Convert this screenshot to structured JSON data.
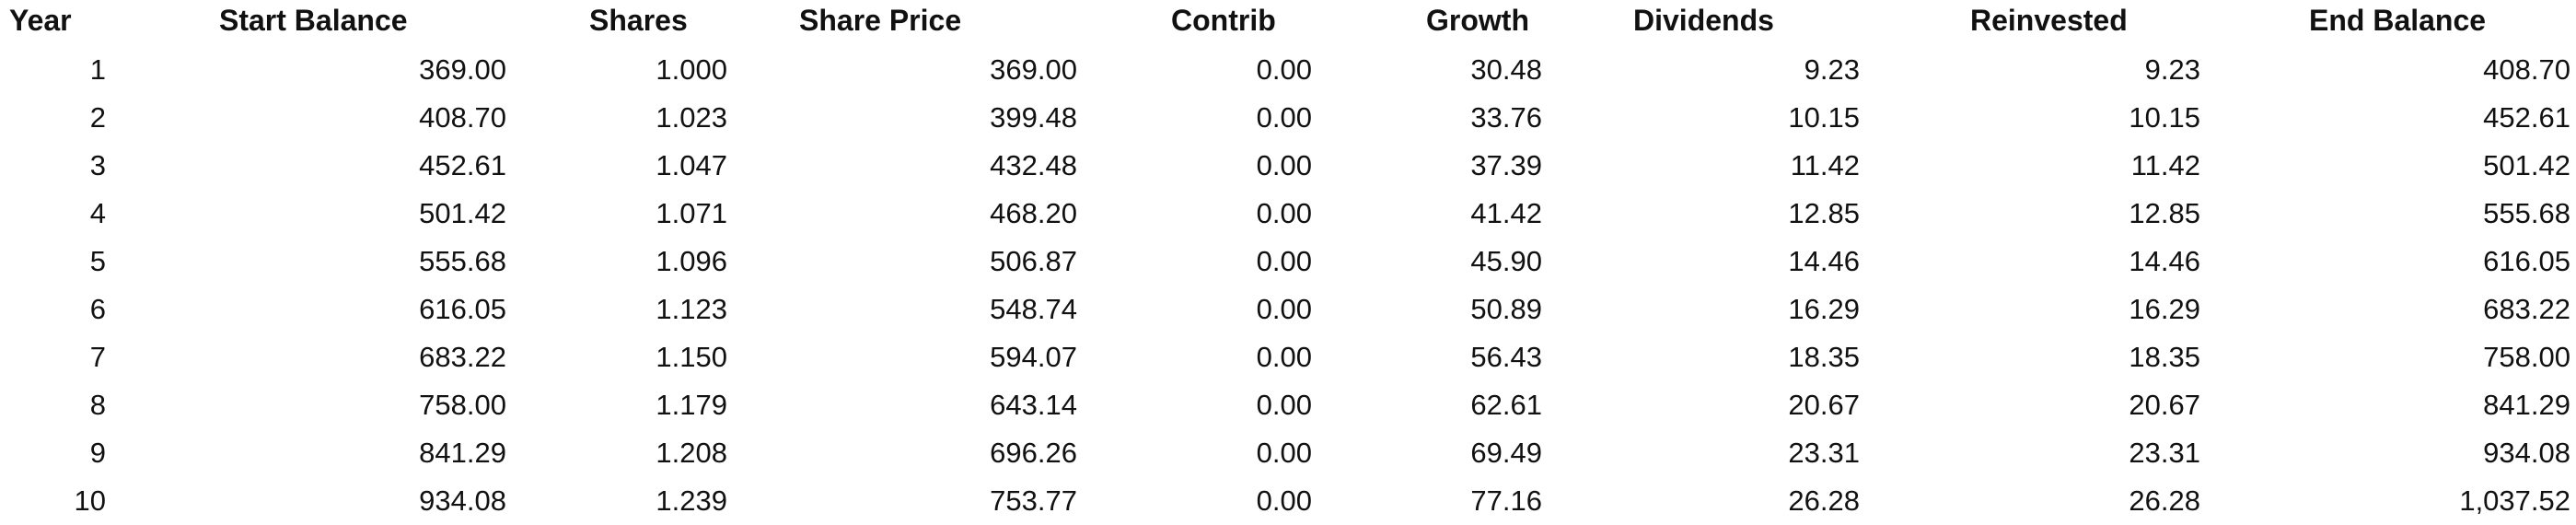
{
  "table": {
    "headers": {
      "year": "Year",
      "start_balance": "Start Balance",
      "shares": "Shares",
      "share_price": "Share Price",
      "contrib": "Contrib",
      "growth": "Growth",
      "dividends": "Dividends",
      "reinvested": "Reinvested",
      "end_balance": "End Balance"
    },
    "rows": [
      {
        "year": "1",
        "start_balance": "369.00",
        "shares": "1.000",
        "share_price": "369.00",
        "contrib": "0.00",
        "growth": "30.48",
        "dividends": "9.23",
        "reinvested": "9.23",
        "end_balance": "408.70"
      },
      {
        "year": "2",
        "start_balance": "408.70",
        "shares": "1.023",
        "share_price": "399.48",
        "contrib": "0.00",
        "growth": "33.76",
        "dividends": "10.15",
        "reinvested": "10.15",
        "end_balance": "452.61"
      },
      {
        "year": "3",
        "start_balance": "452.61",
        "shares": "1.047",
        "share_price": "432.48",
        "contrib": "0.00",
        "growth": "37.39",
        "dividends": "11.42",
        "reinvested": "11.42",
        "end_balance": "501.42"
      },
      {
        "year": "4",
        "start_balance": "501.42",
        "shares": "1.071",
        "share_price": "468.20",
        "contrib": "0.00",
        "growth": "41.42",
        "dividends": "12.85",
        "reinvested": "12.85",
        "end_balance": "555.68"
      },
      {
        "year": "5",
        "start_balance": "555.68",
        "shares": "1.096",
        "share_price": "506.87",
        "contrib": "0.00",
        "growth": "45.90",
        "dividends": "14.46",
        "reinvested": "14.46",
        "end_balance": "616.05"
      },
      {
        "year": "6",
        "start_balance": "616.05",
        "shares": "1.123",
        "share_price": "548.74",
        "contrib": "0.00",
        "growth": "50.89",
        "dividends": "16.29",
        "reinvested": "16.29",
        "end_balance": "683.22"
      },
      {
        "year": "7",
        "start_balance": "683.22",
        "shares": "1.150",
        "share_price": "594.07",
        "contrib": "0.00",
        "growth": "56.43",
        "dividends": "18.35",
        "reinvested": "18.35",
        "end_balance": "758.00"
      },
      {
        "year": "8",
        "start_balance": "758.00",
        "shares": "1.179",
        "share_price": "643.14",
        "contrib": "0.00",
        "growth": "62.61",
        "dividends": "20.67",
        "reinvested": "20.67",
        "end_balance": "841.29"
      },
      {
        "year": "9",
        "start_balance": "841.29",
        "shares": "1.208",
        "share_price": "696.26",
        "contrib": "0.00",
        "growth": "69.49",
        "dividends": "23.31",
        "reinvested": "23.31",
        "end_balance": "934.08"
      },
      {
        "year": "10",
        "start_balance": "934.08",
        "shares": "1.239",
        "share_price": "753.77",
        "contrib": "0.00",
        "growth": "77.16",
        "dividends": "26.28",
        "reinvested": "26.28",
        "end_balance": "1,037.52"
      }
    ]
  }
}
